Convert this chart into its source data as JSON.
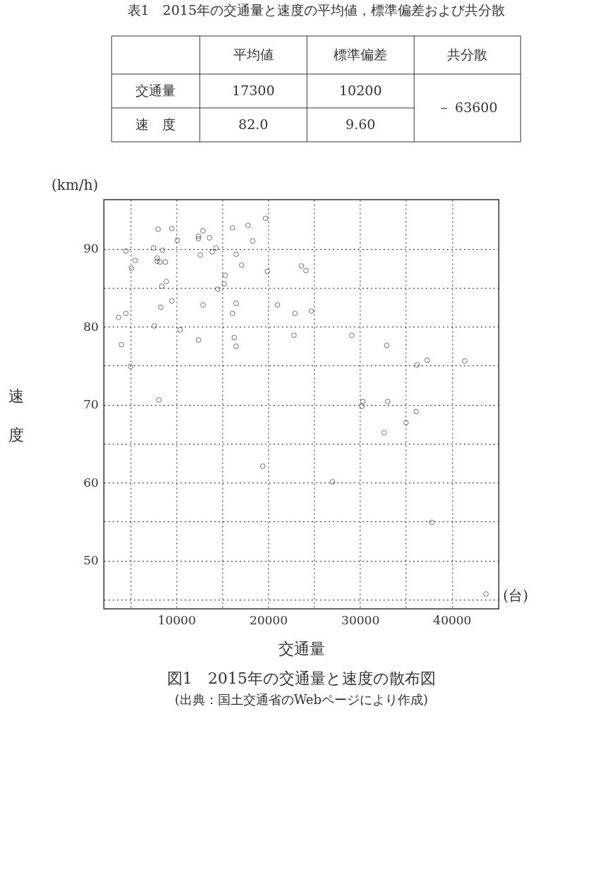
{
  "chart_data": [
    {
      "type": "other",
      "title": "表1　2015年の交通量と速度の平均値，標準偏差および共分散",
      "annotations": [
        "平均値",
        "標準偏差",
        "共分散",
        "交通量",
        "17300",
        "10200",
        "－ 63600",
        "速　度",
        "82.0",
        "9.60"
      ]
    },
    {
      "type": "scatter",
      "title": "図1　2015年の交通量と速度の散布図",
      "xlabel": "交通量",
      "ylabel": "速度",
      "annotations": [
        "(km/h)",
        "(台)",
        "(出典：国土交通省のWebページにより作成)"
      ],
      "x": [
        3700,
        4500,
        4000,
        4500,
        5100,
        5500,
        5000,
        7500,
        8000,
        9500,
        10100,
        8500,
        7900,
        7900,
        8200,
        8800,
        8400,
        8900,
        9500,
        8300,
        7600,
        10400,
        8100,
        12400,
        12400,
        12900,
        13600,
        12600,
        13900,
        14300,
        12900,
        12400,
        16100,
        17800,
        18300,
        19700,
        16500,
        17100,
        15300,
        15200,
        14500,
        16500,
        16100,
        16300,
        16500,
        19900,
        19400,
        21000,
        22900,
        24700,
        23600,
        24100,
        22800,
        29100,
        32900,
        36200,
        37300,
        41400,
        30300,
        30200,
        33000,
        36100,
        35000,
        32600,
        27000,
        37800,
        43700
      ],
      "series": [
        {
          "color": "#333333",
          "values": [
            81.2,
            81.7,
            77.7,
            89.7,
            87.5,
            88.5,
            74.9,
            90.1,
            92.5,
            92.6,
            91.1,
            89.8,
            88.8,
            88.4,
            88.3,
            88.3,
            85.2,
            85.8,
            83.3,
            82.5,
            80.1,
            79.6,
            70.6,
            91.6,
            91.3,
            92.3,
            91.4,
            89.2,
            89.6,
            90.1,
            82.8,
            78.3,
            92.7,
            93.0,
            91.0,
            93.9,
            89.3,
            87.9,
            86.6,
            85.5,
            84.8,
            83.0,
            81.7,
            78.6,
            77.5,
            87.1,
            62.1,
            82.8,
            81.7,
            82.0,
            87.8,
            87.2,
            78.9,
            78.9,
            77.6,
            75.1,
            75.7,
            75.6,
            70.4,
            69.8,
            70.4,
            69.1,
            67.7,
            66.4,
            60.1,
            54.9,
            45.7
          ]
        }
      ],
      "marker": "circle",
      "grid": true,
      "xlim": [
        2100,
        45100
      ],
      "ylim": [
        43.8,
        96.3
      ],
      "xticks": [
        {
          "value": 5000,
          "label": null
        },
        10000,
        {
          "value": 15000,
          "label": null
        },
        20000,
        {
          "value": 25000,
          "label": null
        },
        30000,
        {
          "value": 35000,
          "label": null
        },
        40000
      ],
      "yticks": [
        {
          "value": 45,
          "label": null
        },
        50,
        {
          "value": 55,
          "label": null
        },
        60,
        {
          "value": 65,
          "label": null
        },
        70,
        {
          "value": 75,
          "label": null
        },
        80,
        {
          "value": 85,
          "label": null
        },
        90
      ]
    }
  ]
}
